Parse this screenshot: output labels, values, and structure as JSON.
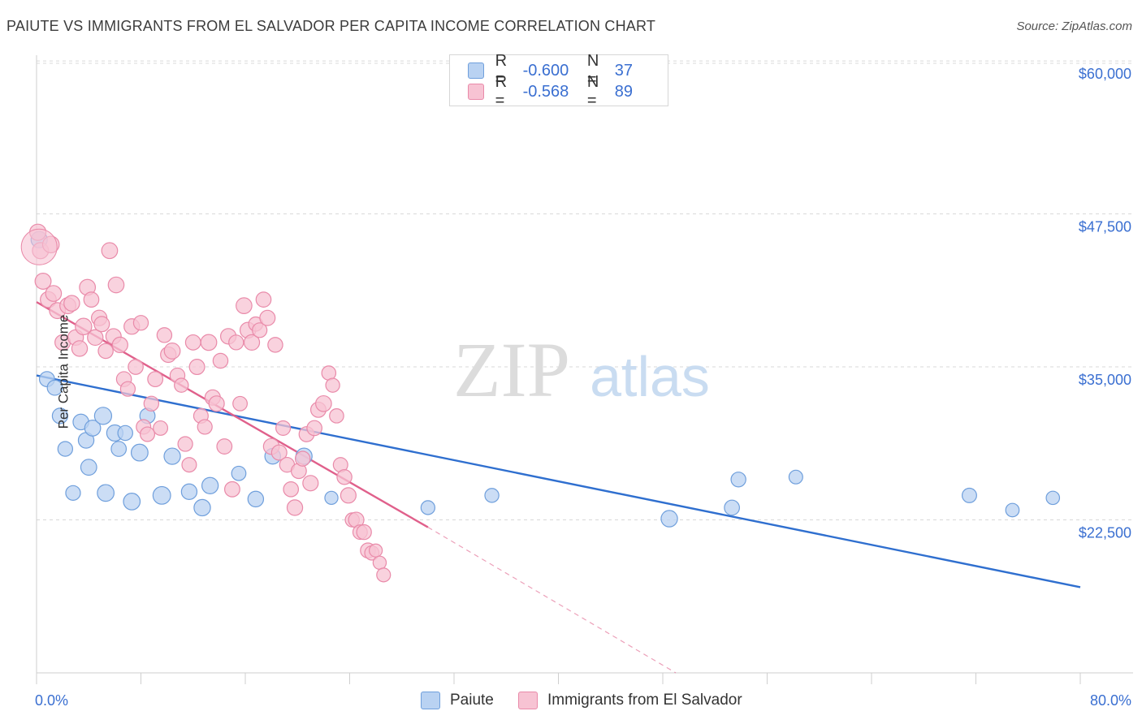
{
  "header": {
    "title": "PAIUTE VS IMMIGRANTS FROM EL SALVADOR PER CAPITA INCOME CORRELATION CHART",
    "source": "Source: ZipAtlas.com"
  },
  "legend": {
    "rows": [
      {
        "r_label": "R =",
        "r_value": "-0.600",
        "n_label": "N =",
        "n_value": "37"
      },
      {
        "r_label": "R =",
        "r_value": "-0.568",
        "n_label": "N =",
        "n_value": "89"
      }
    ]
  },
  "watermark": {
    "zip": "ZIP",
    "atlas": "atlas"
  },
  "colors": {
    "blue_fill": "#b9d2f2",
    "blue_stroke": "#6f9fdc",
    "blue_line": "#2f6fcf",
    "pink_fill": "#f7c3d3",
    "pink_stroke": "#e98aa9",
    "pink_line": "#e0608b",
    "axis_text": "#3a6fd1",
    "grid": "#d9d9d9"
  },
  "chart_data": {
    "type": "scatter",
    "title": "PAIUTE VS IMMIGRANTS FROM EL SALVADOR PER CAPITA INCOME CORRELATION CHART",
    "xlabel": "",
    "ylabel": "Per Capita Income",
    "xlim": [
      0,
      80
    ],
    "ylim": [
      10000,
      61000
    ],
    "x_tick_labels": [
      "0.0%",
      "80.0%"
    ],
    "y_ticks": [
      22500,
      35000,
      47500,
      60000
    ],
    "y_tick_labels": [
      "$22,500",
      "$35,000",
      "$47,500",
      "$60,000"
    ],
    "grid": true,
    "legend_position": "top-center",
    "series": [
      {
        "name": "Paiute",
        "points": [
          [
            0.2,
            42.8,
            45400
          ],
          [
            0.8,
            32.5,
            34000
          ],
          [
            1.4,
            32.3,
            33300
          ],
          [
            1.8,
            35.6,
            31000
          ],
          [
            2.2,
            29.1,
            28300
          ],
          [
            2.8,
            28.5,
            24700
          ],
          [
            3.4,
            37.8,
            30500
          ],
          [
            3.8,
            36.9,
            29000
          ],
          [
            4.0,
            40.2,
            26800
          ],
          [
            4.3,
            39.8,
            30000
          ],
          [
            5.1,
            51.2,
            31000
          ],
          [
            5.3,
            47.4,
            24700
          ],
          [
            6.0,
            42.8,
            29600
          ],
          [
            6.3,
            32.0,
            28300
          ],
          [
            6.8,
            30.2,
            29600
          ],
          [
            7.3,
            47.0,
            24000
          ],
          [
            7.9,
            48.0,
            28000
          ],
          [
            8.5,
            33.5,
            31000
          ],
          [
            9.6,
            55.5,
            24500
          ],
          [
            10.4,
            43.5,
            27700
          ],
          [
            11.7,
            36.5,
            24800
          ],
          [
            12.7,
            44.5,
            23500
          ],
          [
            13.3,
            43.8,
            25300
          ],
          [
            15.5,
            25.0,
            26300
          ],
          [
            16.8,
            37.2,
            24200
          ],
          [
            18.1,
            37.5,
            27700
          ],
          [
            20.5,
            42.3,
            27700
          ],
          [
            22.6,
            14.0,
            24300
          ],
          [
            30.0,
            21.0,
            23500
          ],
          [
            34.9,
            22.0,
            24500
          ],
          [
            48.5,
            44.5,
            22600
          ],
          [
            53.3,
            32.0,
            23500
          ],
          [
            53.8,
            29.3,
            25800
          ],
          [
            58.2,
            19.5,
            26000
          ],
          [
            71.5,
            26.2,
            24500
          ],
          [
            74.8,
            17.0,
            23300
          ],
          [
            77.9,
            16.0,
            24300
          ]
        ]
      },
      {
        "name": "Immigrants from El Salvador",
        "points": [
          [
            0.1,
            43.0,
            46000
          ],
          [
            0.3,
            42.0,
            44500
          ],
          [
            0.5,
            41.0,
            42000
          ],
          [
            0.9,
            40.0,
            40500
          ],
          [
            1.1,
            46.2,
            45000
          ],
          [
            1.3,
            39.0,
            41000
          ],
          [
            1.6,
            40.5,
            39600
          ],
          [
            2.0,
            35.0,
            37000
          ],
          [
            2.4,
            41.0,
            40000
          ],
          [
            2.7,
            38.0,
            40200
          ],
          [
            3.0,
            36.0,
            37400
          ],
          [
            3.3,
            37.0,
            36500
          ],
          [
            3.6,
            44.8,
            38300
          ],
          [
            3.9,
            40.0,
            41500
          ],
          [
            4.2,
            32.0,
            40500
          ],
          [
            4.5,
            36.6,
            37400
          ],
          [
            4.8,
            35.8,
            39000
          ],
          [
            5.0,
            34.0,
            38500
          ],
          [
            5.3,
            30.5,
            36300
          ],
          [
            5.6,
            39.5,
            44500
          ],
          [
            5.9,
            34.2,
            37500
          ],
          [
            6.1,
            38.8,
            41700
          ],
          [
            6.4,
            36.0,
            36800
          ],
          [
            6.7,
            31.0,
            34000
          ],
          [
            7.0,
            28.2,
            33200
          ],
          [
            7.3,
            36.3,
            38300
          ],
          [
            7.6,
            31.0,
            35000
          ],
          [
            8.0,
            29.0,
            38600
          ],
          [
            8.2,
            27.0,
            30100
          ],
          [
            8.5,
            26.5,
            29500
          ],
          [
            8.8,
            29.3,
            32000
          ],
          [
            9.1,
            32.8,
            34000
          ],
          [
            9.5,
            26.0,
            30000
          ],
          [
            9.8,
            29.5,
            37600
          ],
          [
            10.1,
            36.2,
            36000
          ],
          [
            10.4,
            40.0,
            36300
          ],
          [
            10.8,
            30.0,
            34300
          ],
          [
            11.1,
            22.3,
            33500
          ],
          [
            11.4,
            28.5,
            28700
          ],
          [
            11.7,
            27.0,
            27000
          ],
          [
            12.0,
            33.0,
            37000
          ],
          [
            12.3,
            34.0,
            35000
          ],
          [
            12.6,
            27.2,
            31000
          ],
          [
            12.9,
            28.0,
            30100
          ],
          [
            13.2,
            39.7,
            37000
          ],
          [
            13.5,
            34.5,
            32500
          ],
          [
            13.8,
            35.0,
            32000
          ],
          [
            14.1,
            30.3,
            35500
          ],
          [
            14.4,
            32.5,
            28500
          ],
          [
            14.7,
            35.8,
            37500
          ],
          [
            15.0,
            33.0,
            25000
          ],
          [
            15.3,
            29.0,
            37000
          ],
          [
            15.6,
            25.4,
            32000
          ],
          [
            15.9,
            39.2,
            40000
          ],
          [
            16.2,
            38.0,
            38000
          ],
          [
            16.5,
            35.8,
            37000
          ],
          [
            16.8,
            24.0,
            38500
          ],
          [
            17.1,
            28.2,
            38000
          ],
          [
            17.4,
            31.5,
            40500
          ],
          [
            17.7,
            34.3,
            39000
          ],
          [
            18.0,
            39.3,
            28500
          ],
          [
            18.3,
            30.0,
            36800
          ],
          [
            18.6,
            33.8,
            28000
          ],
          [
            18.9,
            27.2,
            30000
          ],
          [
            19.2,
            29.8,
            27000
          ],
          [
            19.5,
            31.0,
            25000
          ],
          [
            19.8,
            36.2,
            23500
          ],
          [
            20.1,
            32.8,
            26500
          ],
          [
            20.4,
            30.0,
            27500
          ],
          [
            20.7,
            32.0,
            29500
          ],
          [
            21.0,
            35.0,
            25500
          ],
          [
            21.3,
            31.7,
            30000
          ],
          [
            21.6,
            33.8,
            31500
          ],
          [
            22.0,
            39.0,
            32000
          ],
          [
            22.4,
            23.3,
            34500
          ],
          [
            22.7,
            21.6,
            33500
          ],
          [
            23.0,
            24.0,
            31000
          ],
          [
            23.3,
            26.4,
            27000
          ],
          [
            23.6,
            30.1,
            26000
          ],
          [
            23.9,
            35.0,
            24500
          ],
          [
            24.2,
            22.8,
            22500
          ],
          [
            24.5,
            35.2,
            22500
          ],
          [
            24.8,
            26.0,
            21500
          ],
          [
            25.1,
            29.5,
            21500
          ],
          [
            25.4,
            31.0,
            20000
          ],
          [
            25.7,
            25.0,
            19800
          ],
          [
            26.0,
            13.0,
            20000
          ],
          [
            26.3,
            14.5,
            19000
          ],
          [
            26.6,
            20.0,
            18000
          ]
        ]
      }
    ],
    "trendlines": [
      {
        "series": "Paiute",
        "x0": 0,
        "y0": 34300,
        "x1": 80,
        "y1": 17000,
        "style": "solid"
      },
      {
        "series": "Immigrants from El Salvador",
        "x0": 0,
        "y0": 40300,
        "x1": 30,
        "y1": 21900,
        "style": "solid"
      },
      {
        "series": "Immigrants from El Salvador",
        "x0": 30,
        "y0": 21900,
        "x1": 49,
        "y1": 10000,
        "style": "dashed"
      }
    ]
  },
  "bottom_legend": {
    "items": [
      {
        "label": "Paiute"
      },
      {
        "label": "Immigrants from El Salvador"
      }
    ]
  }
}
